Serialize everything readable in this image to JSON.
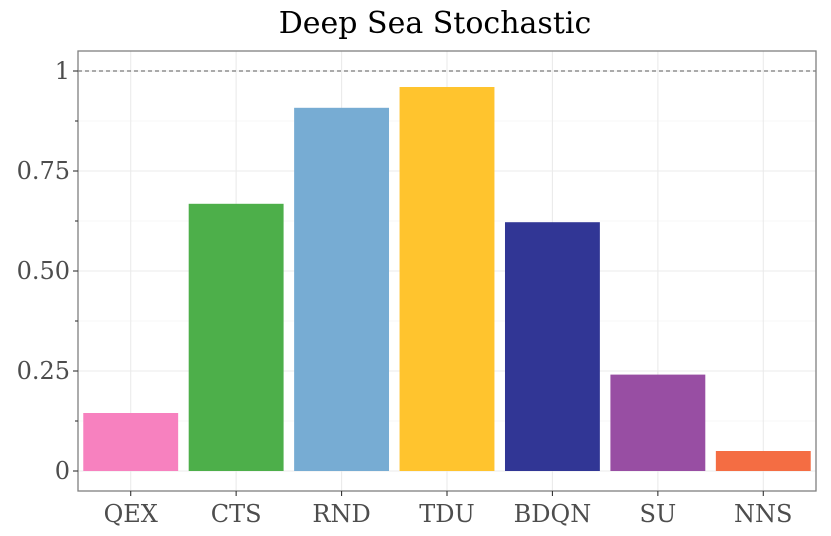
{
  "chart_data": {
    "type": "bar",
    "title": "Deep Sea Stochastic",
    "xlabel": "",
    "ylabel": "",
    "categories": [
      "QEX",
      "CTS",
      "RND",
      "TDU",
      "BDQN",
      "SU",
      "NNS"
    ],
    "values": [
      0.145,
      0.668,
      0.908,
      0.96,
      0.622,
      0.241,
      0.05
    ],
    "colors": [
      "#f781bf",
      "#4daf4a",
      "#77acd3",
      "#ffc42e",
      "#313695",
      "#984ea3",
      "#f46d43"
    ],
    "ylim": [
      -0.05,
      1.05
    ],
    "yticks": [
      0,
      0.25,
      0.5,
      0.75,
      1
    ],
    "ytick_labels": [
      "0",
      "0.25",
      "0.50",
      "0.75",
      "1"
    ],
    "reference_line": 1,
    "grid": true,
    "legend": "none"
  }
}
